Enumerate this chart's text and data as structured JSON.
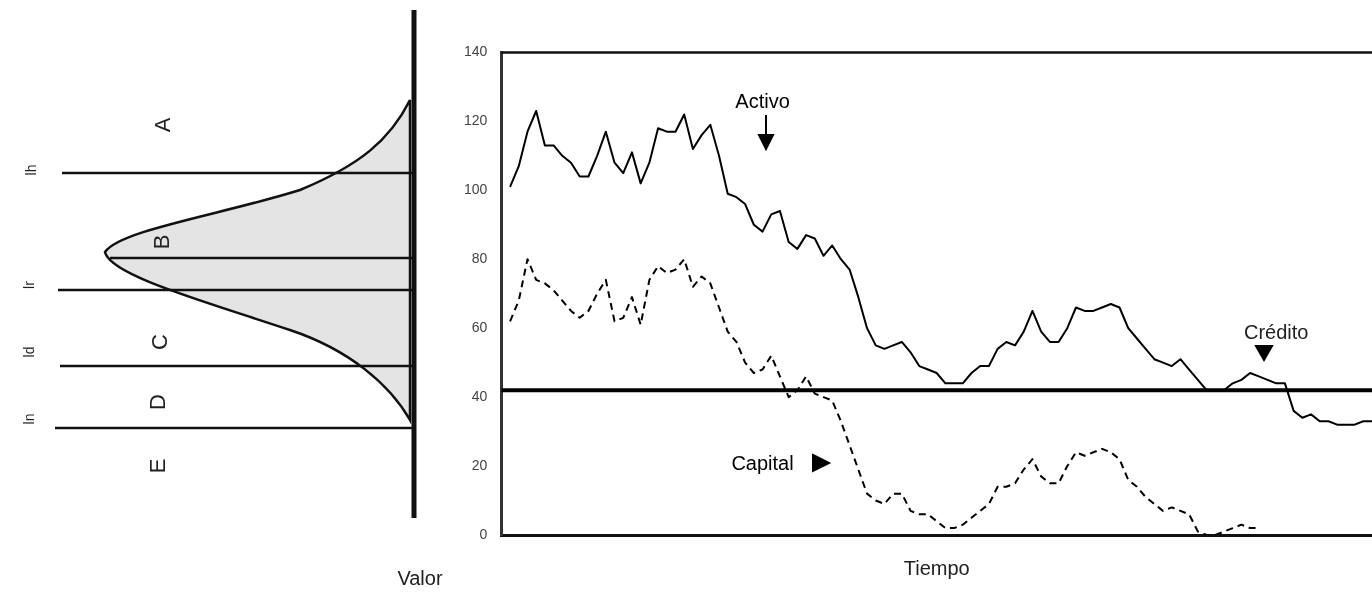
{
  "chart_data": [
    {
      "type": "other",
      "xlabel": "Valor",
      "annotations": [
        "A",
        "B",
        "C",
        "D",
        "E",
        "lh",
        "lr",
        "ld",
        "ln"
      ]
    },
    {
      "type": "line",
      "xlabel": "Tiempo",
      "categories": [
        null,
        null,
        null,
        null,
        null,
        null,
        null,
        null,
        null,
        null,
        null,
        null,
        null,
        null,
        null,
        null,
        null,
        null,
        null,
        null,
        null,
        null,
        null,
        null,
        null,
        null,
        null,
        null,
        null,
        null,
        null,
        null,
        null,
        null,
        null,
        null,
        null,
        null,
        null,
        null,
        null,
        null,
        null,
        null,
        null,
        null,
        null,
        null,
        null,
        null,
        null,
        null,
        null,
        null,
        null,
        null,
        null,
        null,
        null,
        null,
        null,
        null,
        null,
        null,
        null,
        null,
        null,
        null,
        null,
        null,
        null,
        null,
        null,
        null,
        null,
        null,
        null,
        null,
        null,
        null,
        null,
        null,
        null,
        null,
        null,
        null,
        null,
        null,
        null,
        null,
        null,
        null,
        null,
        null,
        null,
        null,
        null,
        null,
        null,
        null,
        null
      ],
      "ylim": [
        0,
        140
      ],
      "yticks": [
        0,
        20,
        40,
        60,
        80,
        100,
        120,
        140
      ],
      "tick_labels": "y",
      "grid": false,
      "marker": "none",
      "series": [
        {
          "name": "Activo",
          "color": "#000000",
          "line_style": "solid",
          "values": [
            null,
            101,
            107,
            117,
            123,
            113,
            113,
            110,
            108,
            104,
            104,
            110,
            117,
            108,
            105,
            111,
            102,
            108,
            118,
            117,
            117,
            122,
            112,
            116,
            119,
            110,
            99,
            98,
            96,
            90,
            88,
            93,
            94,
            85,
            83,
            87,
            86,
            81,
            84,
            80,
            77,
            69,
            60,
            55,
            54,
            55,
            56,
            53,
            49,
            48,
            47,
            44,
            44,
            44,
            47,
            49,
            49,
            54,
            56,
            55,
            59,
            65,
            59,
            56,
            56,
            60,
            66,
            65,
            65,
            66,
            67,
            66,
            60,
            57,
            54,
            51,
            50,
            49,
            51,
            48,
            45,
            42,
            42,
            42,
            44,
            45,
            47,
            46,
            45,
            44,
            44,
            36,
            34,
            35,
            33,
            33,
            32,
            32,
            32,
            33,
            33
          ]
        },
        {
          "name": "Capital",
          "color": "#000000",
          "line_style": "dashed",
          "values": [
            null,
            62,
            68,
            80,
            74,
            73,
            71,
            68,
            65,
            63,
            65,
            70,
            74,
            62,
            63,
            69,
            61,
            74,
            78,
            76,
            77,
            80,
            72,
            75,
            73,
            66,
            59,
            56,
            50,
            47,
            48,
            52,
            46,
            40,
            42,
            46,
            41,
            40,
            39,
            33,
            26,
            19,
            12,
            10,
            9,
            12,
            12,
            7,
            6,
            6,
            4,
            2,
            2,
            3,
            5,
            7,
            9,
            14,
            14,
            15,
            19,
            22,
            17,
            15,
            15,
            20,
            24,
            23,
            24,
            25,
            24,
            22,
            16,
            14,
            11,
            9,
            7,
            8,
            7,
            6,
            1,
            0,
            0,
            1,
            2,
            3,
            2,
            2,
            null,
            null,
            null,
            null,
            null,
            null,
            null,
            null,
            null,
            null,
            null,
            null,
            null
          ]
        }
      ],
      "ref_lines": [
        {
          "axis": "y",
          "value": 42,
          "label": "Crédito",
          "color": "#000000"
        }
      ]
    }
  ]
}
